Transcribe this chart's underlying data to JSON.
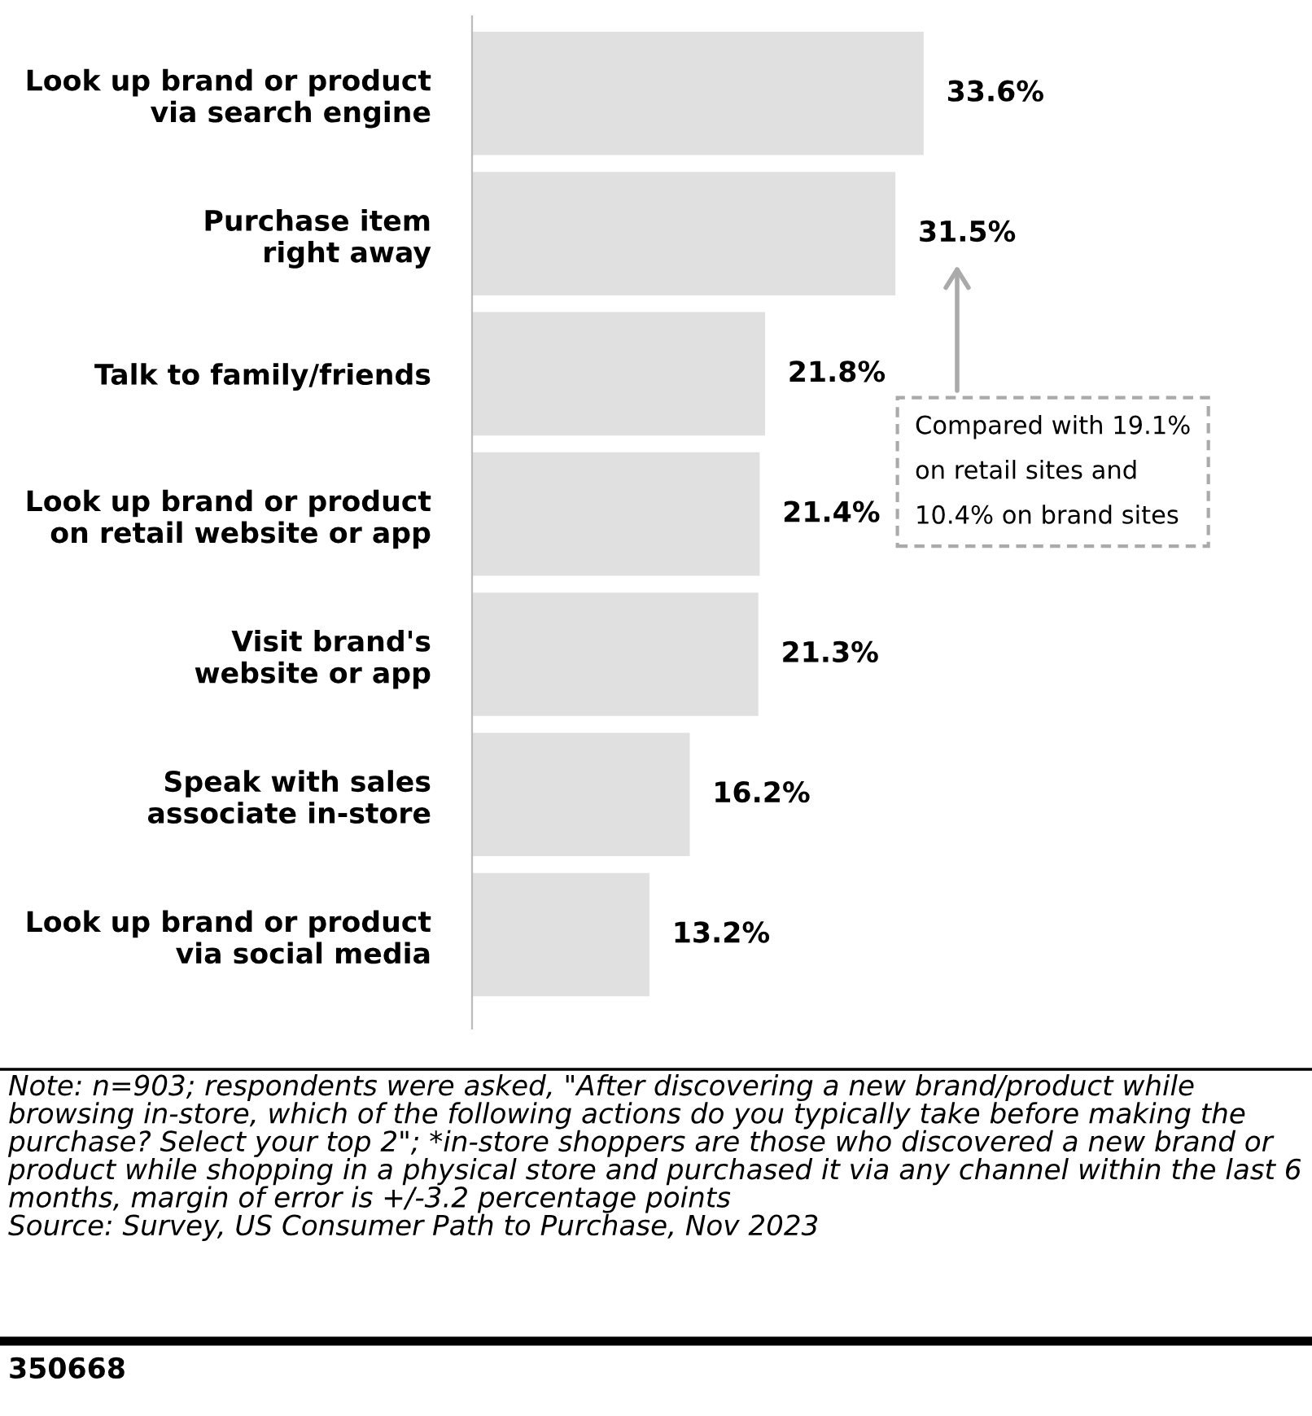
{
  "chart_data": {
    "type": "bar",
    "orientation": "horizontal",
    "categories": [
      "Look up brand or product\nvia search engine",
      "Purchase item\nright away",
      "Talk to family/friends",
      "Look up brand or product\non retail website or app",
      "Visit brand's\nwebsite or app",
      "Speak with sales\nassociate in-store",
      "Look up brand or product\nvia social media"
    ],
    "values": [
      33.6,
      31.5,
      21.8,
      21.4,
      21.3,
      16.2,
      13.2
    ],
    "value_labels": [
      "33.6%",
      "31.5%",
      "21.8%",
      "21.4%",
      "21.3%",
      "16.2%",
      "13.2%"
    ],
    "color": "#e0e0e0",
    "annotations": [
      "Compared with 19.1%\non retail sites and\n10.4% on brand sites",
      "Note: n=903; respondents were asked, \"After discovering a new brand/product while browsing in-store, which of the following actions do you typically take before making the purchase? Select your top 2\"; *in-store shoppers are those who discovered a new brand or product while shopping in a physical store and purchased it via any channel within the last 6 months, margin of error is +/-3.2 percentage points\nSource: Survey, US Consumer Path to Purchase, Nov 2023",
      "350668"
    ]
  }
}
